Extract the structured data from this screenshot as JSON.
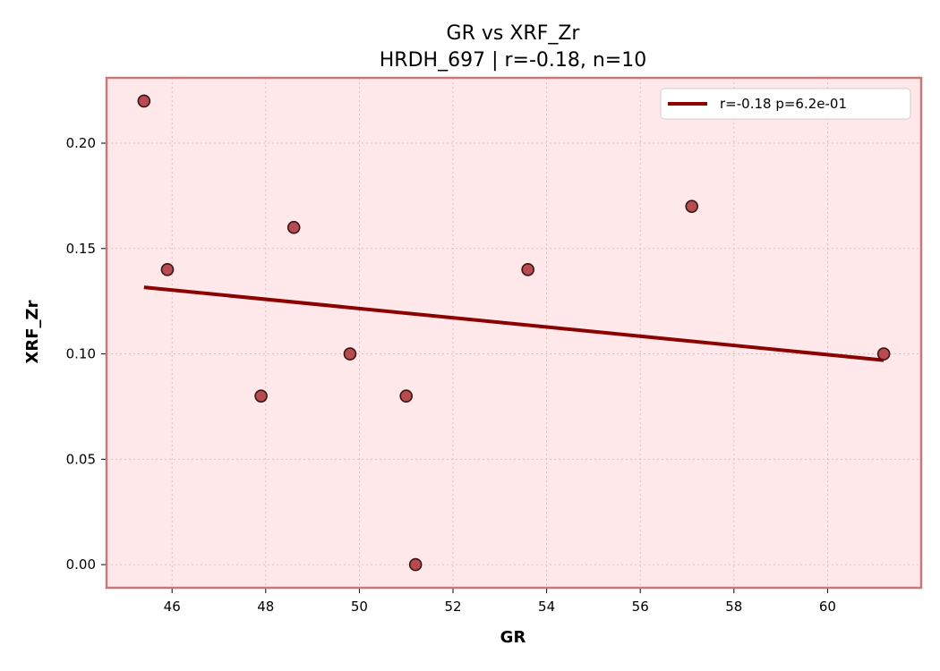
{
  "chart_data": {
    "type": "scatter",
    "title": "GR vs XRF_Zr",
    "subtitle": "HRDH_697 | r=-0.18, n=10",
    "xlabel": "GR",
    "ylabel": "XRF_Zr",
    "xlim": [
      44.6,
      62.0
    ],
    "ylim": [
      -0.011,
      0.231
    ],
    "xticks": [
      "46",
      "48",
      "50",
      "52",
      "54",
      "56",
      "58",
      "60"
    ],
    "yticks": [
      "0.00",
      "0.05",
      "0.10",
      "0.15",
      "0.20"
    ],
    "grid": true,
    "legend_position": "top-right",
    "series": [
      {
        "kind": "points",
        "x": [
          45.4,
          45.9,
          47.9,
          48.6,
          49.8,
          51.0,
          51.2,
          53.6,
          57.1,
          61.2
        ],
        "y": [
          0.22,
          0.14,
          0.08,
          0.16,
          0.1,
          0.08,
          0.0,
          0.14,
          0.17,
          0.1
        ]
      },
      {
        "kind": "fit-line",
        "name": "r=-0.18  p=6.2e-01",
        "x": [
          45.4,
          61.2
        ],
        "y": [
          0.1316,
          0.097
        ]
      }
    ],
    "colors": {
      "plot_background": "#ffe8ea",
      "frame": "#c47a7a",
      "points_fill": "#b03a3e",
      "points_edge": "#3a1414",
      "line": "#8b0000"
    }
  }
}
